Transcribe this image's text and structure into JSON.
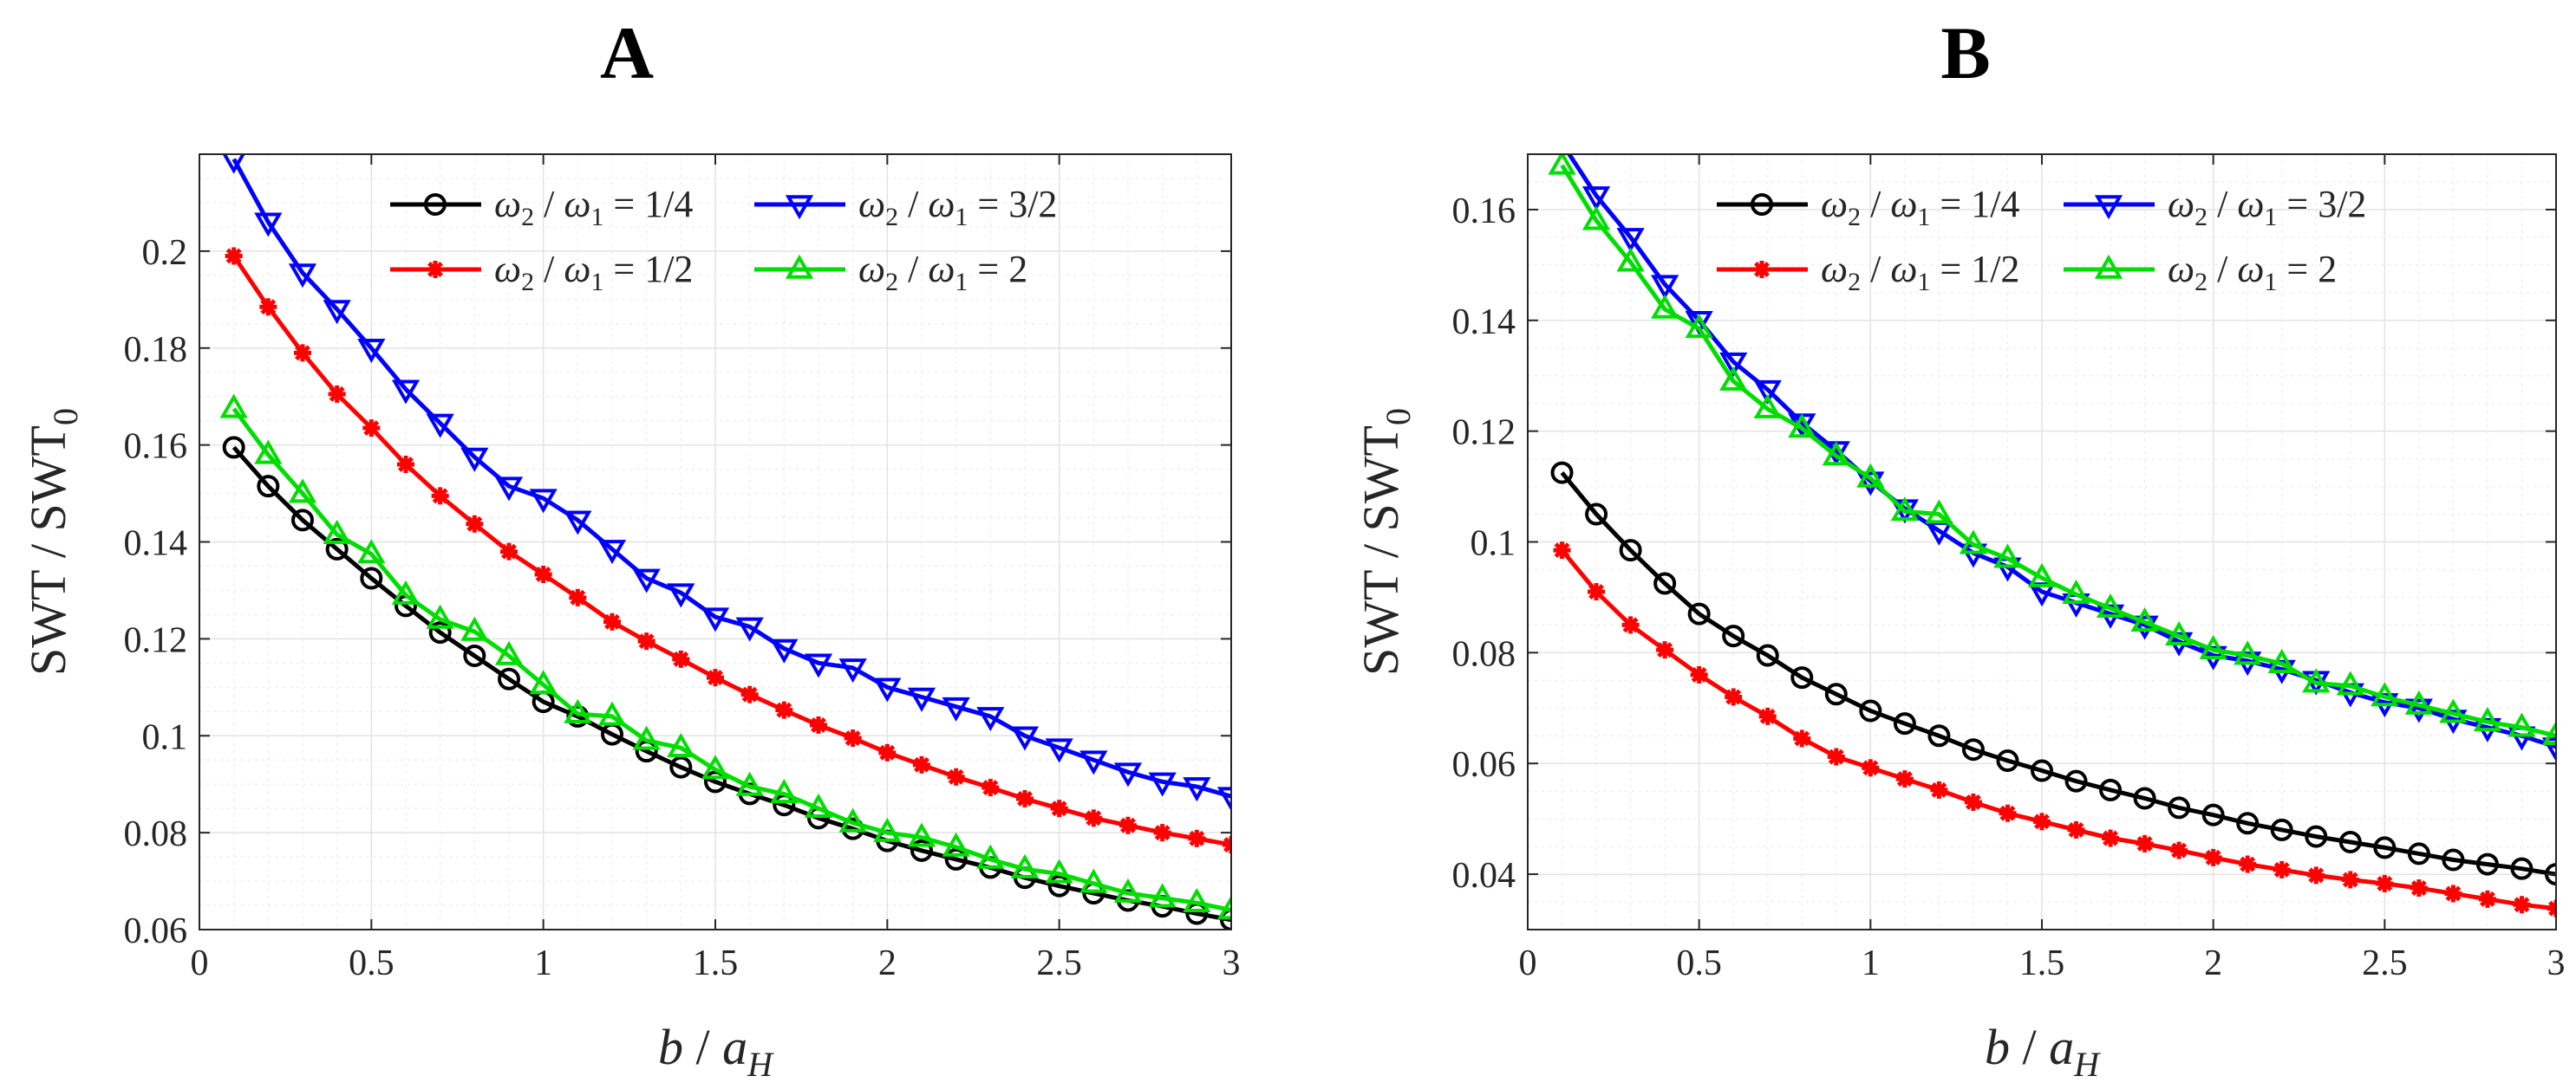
{
  "chart_data": [
    {
      "type": "line",
      "panel_title": "A",
      "xlabel": "b / a_H",
      "ylabel": "SWT / SWT_0",
      "xlim": [
        0,
        3
      ],
      "ylim": [
        0.06,
        0.22
      ],
      "xticks": [
        0,
        0.5,
        1,
        1.5,
        2,
        2.5,
        3
      ],
      "xtick_labels": [
        "0",
        "0.5",
        "1",
        "1.5",
        "2",
        "2.5",
        "3"
      ],
      "yticks": [
        0.06,
        0.08,
        0.1,
        0.12,
        0.14,
        0.16,
        0.18,
        0.2
      ],
      "ytick_labels": [
        "0.06",
        "0.08",
        "0.1",
        "0.12",
        "0.14",
        "0.16",
        "0.18",
        "0.2"
      ],
      "grid": true,
      "legend_position": "top-right",
      "legend_columns": 2,
      "x": [
        0.1,
        0.2,
        0.3,
        0.4,
        0.5,
        0.6,
        0.7,
        0.8,
        0.9,
        1.0,
        1.1,
        1.2,
        1.3,
        1.4,
        1.5,
        1.6,
        1.7,
        1.8,
        1.9,
        2.0,
        2.1,
        2.2,
        2.3,
        2.4,
        2.5,
        2.6,
        2.7,
        2.8,
        2.9,
        3.0
      ],
      "series": [
        {
          "name": "ω2 / ω1 = 1/4",
          "label_num": "2",
          "label_den": "1",
          "label_value": " = 1/4",
          "color": "#000000",
          "marker": "circle",
          "values": [
            0.1595,
            0.1515,
            0.1445,
            0.1385,
            0.1325,
            0.1268,
            0.1213,
            0.1165,
            0.1117,
            0.107,
            0.104,
            0.1003,
            0.0968,
            0.0935,
            0.0905,
            0.088,
            0.0857,
            0.083,
            0.0808,
            0.0783,
            0.0763,
            0.0745,
            0.0728,
            0.0707,
            0.069,
            0.0675,
            0.066,
            0.0648,
            0.0633,
            0.062
          ]
        },
        {
          "name": "ω2 / ω1 = 1/2",
          "label_num": "2",
          "label_den": "1",
          "label_value": " = 1/2",
          "color": "#ff0000",
          "marker": "star",
          "values": [
            0.199,
            0.1885,
            0.179,
            0.1705,
            0.1635,
            0.156,
            0.1495,
            0.1437,
            0.138,
            0.1333,
            0.1285,
            0.1235,
            0.1195,
            0.1158,
            0.112,
            0.1085,
            0.1053,
            0.1022,
            0.0995,
            0.0965,
            0.094,
            0.0915,
            0.0893,
            0.087,
            0.085,
            0.083,
            0.0815,
            0.08,
            0.0788,
            0.0775
          ]
        },
        {
          "name": "ω2/ ω1 = 3/2",
          "label_num": "2",
          "label_den": "1",
          "label_value": " = 3/2",
          "color": "#0000ff",
          "marker": "triangle-down",
          "values": [
            0.219,
            0.206,
            0.1955,
            0.188,
            0.18,
            0.1715,
            0.1645,
            0.1575,
            0.1515,
            0.149,
            0.1445,
            0.1385,
            0.1325,
            0.1295,
            0.1245,
            0.1225,
            0.118,
            0.115,
            0.114,
            0.11,
            0.108,
            0.106,
            0.104,
            0.1,
            0.0975,
            0.095,
            0.0925,
            0.0905,
            0.0895,
            0.0875
          ]
        },
        {
          "name": "ω2/ ω1 = 2",
          "label_num": "2",
          "label_den": "1",
          "label_value": " = 2",
          "color": "#00dd00",
          "marker": "triangle-up",
          "values": [
            0.1675,
            0.158,
            0.15,
            0.1415,
            0.1375,
            0.129,
            0.124,
            0.1215,
            0.1165,
            0.1105,
            0.1045,
            0.104,
            0.099,
            0.0975,
            0.093,
            0.0895,
            0.088,
            0.085,
            0.082,
            0.08,
            0.079,
            0.077,
            0.0745,
            0.0725,
            0.0715,
            0.0695,
            0.0675,
            0.0665,
            0.0655,
            0.064
          ]
        }
      ]
    },
    {
      "type": "line",
      "panel_title": "B",
      "xlabel": "b / a_H",
      "ylabel": "SWT / SWT_0",
      "xlim": [
        0,
        3
      ],
      "ylim": [
        0.03,
        0.17
      ],
      "xticks": [
        0,
        0.5,
        1,
        1.5,
        2,
        2.5,
        3
      ],
      "xtick_labels": [
        "0",
        "0.5",
        "1",
        "1.5",
        "2",
        "2.5",
        "3"
      ],
      "yticks": [
        0.04,
        0.06,
        0.08,
        0.1,
        0.12,
        0.14,
        0.16
      ],
      "ytick_labels": [
        "0.04",
        "0.06",
        "0.08",
        "0.1",
        "0.12",
        "0.14",
        "0.16"
      ],
      "grid": true,
      "legend_position": "top-right",
      "legend_columns": 2,
      "x": [
        0.1,
        0.2,
        0.3,
        0.4,
        0.5,
        0.6,
        0.7,
        0.8,
        0.9,
        1.0,
        1.1,
        1.2,
        1.3,
        1.4,
        1.5,
        1.6,
        1.7,
        1.8,
        1.9,
        2.0,
        2.1,
        2.2,
        2.3,
        2.4,
        2.5,
        2.6,
        2.7,
        2.8,
        2.9,
        3.0
      ],
      "series": [
        {
          "name": "ω2/ω1 = 1/4",
          "label_num": "2",
          "label_den": "1",
          "label_value": " = 1/4",
          "color": "#000000",
          "marker": "circle",
          "values": [
            0.1125,
            0.105,
            0.0985,
            0.0925,
            0.087,
            0.083,
            0.0795,
            0.0755,
            0.0725,
            0.0695,
            0.0672,
            0.065,
            0.0625,
            0.0605,
            0.0587,
            0.0568,
            0.0552,
            0.0537,
            0.052,
            0.0507,
            0.0492,
            0.048,
            0.0468,
            0.0458,
            0.0448,
            0.0437,
            0.0426,
            0.0418,
            0.041,
            0.04
          ]
        },
        {
          "name": "ω2/ω1 = 1/2",
          "label_num": "2",
          "label_den": "1",
          "label_value": " = 1/2",
          "color": "#ff0000",
          "marker": "star",
          "values": [
            0.0985,
            0.091,
            0.085,
            0.0805,
            0.076,
            0.072,
            0.0685,
            0.0645,
            0.0612,
            0.0592,
            0.0572,
            0.0552,
            0.053,
            0.051,
            0.0495,
            0.048,
            0.0465,
            0.0455,
            0.0443,
            0.043,
            0.0418,
            0.0408,
            0.0398,
            0.039,
            0.0383,
            0.0375,
            0.0365,
            0.0355,
            0.0345,
            0.0338
          ]
        },
        {
          "name": "ω2/ ω1 = 3/2",
          "label_num": "2",
          "label_den": "1",
          "label_value": " = 3/2",
          "color": "#0000ff",
          "marker": "triangle-down",
          "values": [
            0.172,
            0.1625,
            0.155,
            0.1465,
            0.14,
            0.1325,
            0.1275,
            0.1215,
            0.1165,
            0.111,
            0.106,
            0.102,
            0.098,
            0.0955,
            0.091,
            0.089,
            0.087,
            0.085,
            0.082,
            0.0795,
            0.0785,
            0.077,
            0.075,
            0.0728,
            0.071,
            0.07,
            0.068,
            0.0665,
            0.065,
            0.063
          ]
        },
        {
          "name": "ω2/ ω1 = 2",
          "label_num": "2",
          "label_den": "1",
          "label_value": " = 2",
          "color": "#00dd00",
          "marker": "triangle-up",
          "values": [
            0.168,
            0.158,
            0.1505,
            0.142,
            0.1385,
            0.129,
            0.124,
            0.1205,
            0.1155,
            0.1115,
            0.1055,
            0.105,
            0.0995,
            0.097,
            0.0935,
            0.0905,
            0.088,
            0.0855,
            0.083,
            0.0805,
            0.0795,
            0.078,
            0.0745,
            0.074,
            0.072,
            0.0705,
            0.069,
            0.0675,
            0.0665,
            0.065
          ]
        }
      ]
    }
  ]
}
